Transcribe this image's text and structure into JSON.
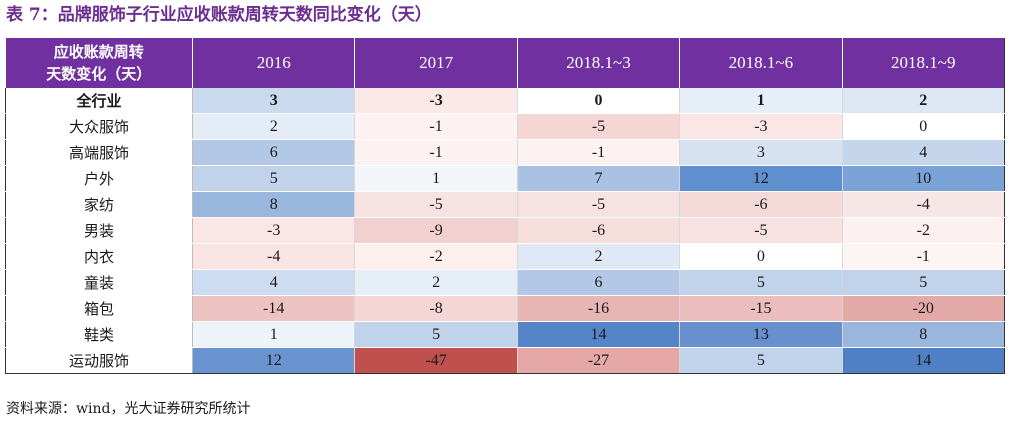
{
  "title": "表 7：品牌服饰子行业应收账款周转天数同比变化（天）",
  "header": {
    "corner_line1": "应收账款周转",
    "corner_line2": "天数变化（天）",
    "columns": [
      "2016",
      "2017",
      "2018.1~3",
      "2018.1~6",
      "2018.1~9"
    ]
  },
  "rows": [
    {
      "label": "全行业",
      "values": [
        "3",
        "-3",
        "0",
        "1",
        "2"
      ],
      "colors": [
        "#c9d9ee",
        "#fbe9e8",
        "#ffffff",
        "#e6eef8",
        "#dde7f4"
      ]
    },
    {
      "label": "大众服饰",
      "values": [
        "2",
        "-1",
        "-5",
        "-3",
        "0"
      ],
      "colors": [
        "#e4ecf7",
        "#fdf2f2",
        "#f5d6d5",
        "#f9e6e5",
        "#ffffff"
      ]
    },
    {
      "label": "高端服饰",
      "values": [
        "6",
        "-1",
        "-1",
        "3",
        "4"
      ],
      "colors": [
        "#b3c8e6",
        "#fdf2f2",
        "#fdf2f2",
        "#d6e2f2",
        "#c5d6ec"
      ]
    },
    {
      "label": "户外",
      "values": [
        "5",
        "1",
        "7",
        "12",
        "10"
      ],
      "colors": [
        "#c1d3eb",
        "#f2f6fb",
        "#a9c2e3",
        "#5f8fcd",
        "#7aa2d6"
      ]
    },
    {
      "label": "家纺",
      "values": [
        "8",
        "-5",
        "-5",
        "-6",
        "-4"
      ],
      "colors": [
        "#99b6dd",
        "#f6e2e1",
        "#f6e2e1",
        "#f3dad9",
        "#f7e6e6"
      ]
    },
    {
      "label": "男装",
      "values": [
        "-3",
        "-9",
        "-6",
        "-5",
        "-2"
      ],
      "colors": [
        "#f9e6e5",
        "#f1d0cf",
        "#f6dedd",
        "#f8e2e1",
        "#fcf0f0"
      ]
    },
    {
      "label": "内衣",
      "values": [
        "-4",
        "-2",
        "2",
        "0",
        "-1"
      ],
      "colors": [
        "#f8e4e3",
        "#fcefee",
        "#dfe8f5",
        "#ffffff",
        "#fdf4f4"
      ]
    },
    {
      "label": "童装",
      "values": [
        "4",
        "2",
        "6",
        "5",
        "5"
      ],
      "colors": [
        "#cddcf0",
        "#e6eef8",
        "#b2c8e6",
        "#c1d3eb",
        "#c1d3eb"
      ]
    },
    {
      "label": "箱包",
      "values": [
        "-14",
        "-8",
        "-16",
        "-15",
        "-20"
      ],
      "colors": [
        "#edc3c2",
        "#f3d6d5",
        "#e7b5b4",
        "#ebbdbc",
        "#e3a9a7"
      ]
    },
    {
      "label": "鞋类",
      "values": [
        "1",
        "5",
        "14",
        "13",
        "8"
      ],
      "colors": [
        "#eef3fa",
        "#c1d3eb",
        "#5585c8",
        "#6890ce",
        "#99b6dd"
      ]
    },
    {
      "label": "运动服饰",
      "values": [
        "12",
        "-47",
        "-27",
        "5",
        "14"
      ],
      "colors": [
        "#6a94cf",
        "#c0504d",
        "#e5a8a6",
        "#c1d3eb",
        "#4f7fc4"
      ]
    }
  ],
  "source": "资料来源：wind，光大证券研究所统计"
}
